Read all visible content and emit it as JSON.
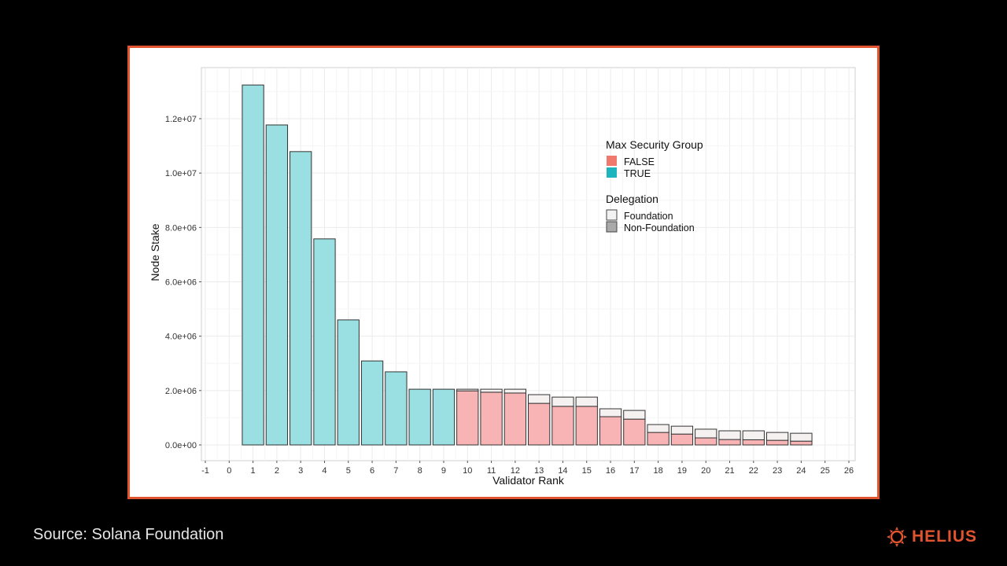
{
  "source": "Source: Solana Foundation",
  "logo": "HELIUS",
  "colors": {
    "false": "#f8b4b4",
    "true": "#9adfe1",
    "foundation": "#f5f1f1",
    "border": "#e0542f",
    "brand": "#e0542f"
  },
  "chart_data": {
    "type": "bar",
    "stacked": true,
    "xlabel": "Validator Rank",
    "ylabel": "Node Stake",
    "xlim": [
      -1,
      26
    ],
    "ylim": [
      0,
      13600000
    ],
    "xticks": [
      "-1",
      "0",
      "1",
      "2",
      "3",
      "4",
      "5",
      "6",
      "7",
      "8",
      "9",
      "10",
      "11",
      "12",
      "13",
      "14",
      "15",
      "16",
      "17",
      "18",
      "19",
      "20",
      "21",
      "22",
      "23",
      "24",
      "25",
      "26"
    ],
    "yticks": [
      {
        "v": 0,
        "label": "0.0e+00"
      },
      {
        "v": 2000000,
        "label": "2.0e+06"
      },
      {
        "v": 4000000,
        "label": "4.0e+06"
      },
      {
        "v": 6000000,
        "label": "6.0e+06"
      },
      {
        "v": 8000000,
        "label": "8.0e+06"
      },
      {
        "v": 10000000,
        "label": "1.0e+07"
      },
      {
        "v": 12000000,
        "label": "1.2e+07"
      }
    ],
    "grid": true,
    "legend": {
      "placement": "top-right",
      "group_title": "Max Security Group",
      "group_entries": [
        "FALSE",
        "TRUE"
      ],
      "delegation_title": "Delegation",
      "delegation_entries": [
        "Foundation",
        "Non-Foundation"
      ]
    },
    "bars": [
      {
        "rank": 1,
        "group": "TRUE",
        "non_foundation": 13240000,
        "foundation": 0
      },
      {
        "rank": 2,
        "group": "TRUE",
        "non_foundation": 11770000,
        "foundation": 0
      },
      {
        "rank": 3,
        "group": "TRUE",
        "non_foundation": 10790000,
        "foundation": 0
      },
      {
        "rank": 4,
        "group": "TRUE",
        "non_foundation": 7580000,
        "foundation": 0
      },
      {
        "rank": 5,
        "group": "TRUE",
        "non_foundation": 4600000,
        "foundation": 0
      },
      {
        "rank": 6,
        "group": "TRUE",
        "non_foundation": 3090000,
        "foundation": 0
      },
      {
        "rank": 7,
        "group": "TRUE",
        "non_foundation": 2690000,
        "foundation": 0
      },
      {
        "rank": 8,
        "group": "TRUE",
        "non_foundation": 2050000,
        "foundation": 0
      },
      {
        "rank": 9,
        "group": "TRUE",
        "non_foundation": 2050000,
        "foundation": 0
      },
      {
        "rank": 10,
        "group": "FALSE",
        "non_foundation": 1990000,
        "foundation": 60000
      },
      {
        "rank": 11,
        "group": "FALSE",
        "non_foundation": 1940000,
        "foundation": 110000
      },
      {
        "rank": 12,
        "group": "FALSE",
        "non_foundation": 1910000,
        "foundation": 140000
      },
      {
        "rank": 13,
        "group": "FALSE",
        "non_foundation": 1530000,
        "foundation": 320000
      },
      {
        "rank": 14,
        "group": "FALSE",
        "non_foundation": 1420000,
        "foundation": 340000
      },
      {
        "rank": 15,
        "group": "FALSE",
        "non_foundation": 1420000,
        "foundation": 340000
      },
      {
        "rank": 16,
        "group": "FALSE",
        "non_foundation": 1040000,
        "foundation": 290000
      },
      {
        "rank": 17,
        "group": "FALSE",
        "non_foundation": 950000,
        "foundation": 320000
      },
      {
        "rank": 18,
        "group": "FALSE",
        "non_foundation": 460000,
        "foundation": 290000
      },
      {
        "rank": 19,
        "group": "FALSE",
        "non_foundation": 400000,
        "foundation": 290000
      },
      {
        "rank": 20,
        "group": "FALSE",
        "non_foundation": 260000,
        "foundation": 320000
      },
      {
        "rank": 21,
        "group": "FALSE",
        "non_foundation": 200000,
        "foundation": 320000
      },
      {
        "rank": 22,
        "group": "FALSE",
        "non_foundation": 190000,
        "foundation": 330000
      },
      {
        "rank": 23,
        "group": "FALSE",
        "non_foundation": 170000,
        "foundation": 290000
      },
      {
        "rank": 24,
        "group": "FALSE",
        "non_foundation": 140000,
        "foundation": 290000
      }
    ]
  }
}
